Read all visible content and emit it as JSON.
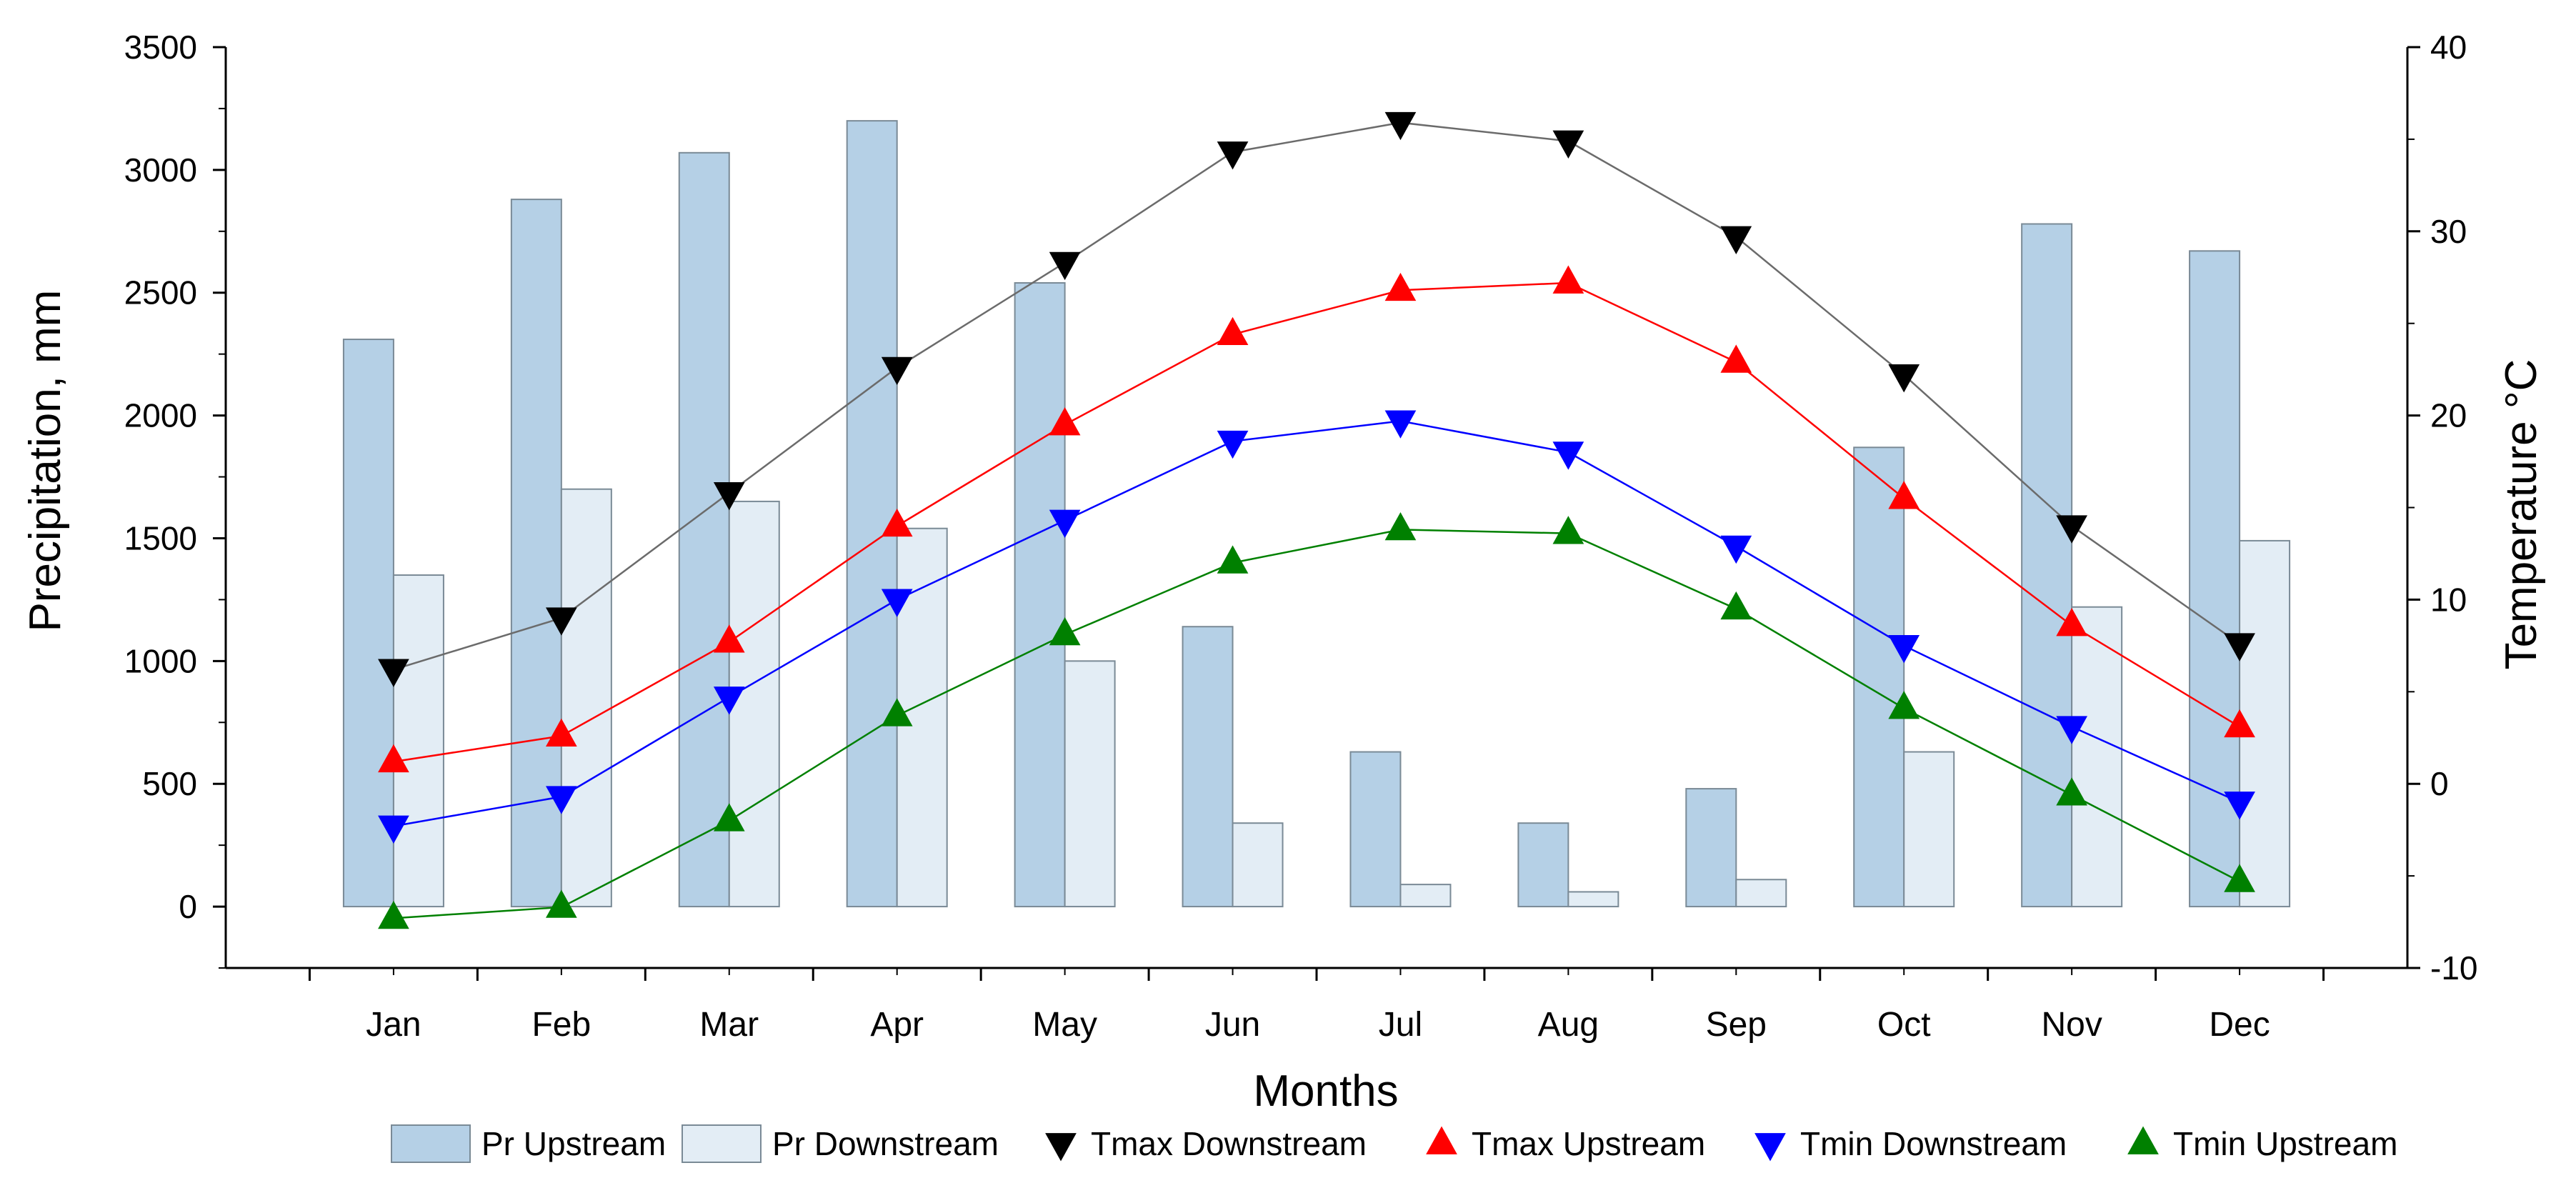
{
  "chart_data": {
    "type": "bar",
    "xlabel": "Months",
    "ylabel_left": "Precipitation, mm",
    "ylabel_right": "Temperature °C",
    "ylim_left": [
      -250,
      3500
    ],
    "ylim_right": [
      -10,
      40
    ],
    "yticks_left": [
      0,
      500,
      1000,
      1500,
      2000,
      2500,
      3000,
      3500
    ],
    "yticks_right": [
      -10,
      0,
      10,
      20,
      30,
      40
    ],
    "categories": [
      "Jan",
      "Feb",
      "Mar",
      "Apr",
      "May",
      "Jun",
      "Jul",
      "Aug",
      "Sep",
      "Oct",
      "Nov",
      "Dec"
    ],
    "bar_series": [
      {
        "name": "Pr Upstream",
        "color": "#b5d0e6",
        "values": [
          2310,
          2880,
          3070,
          3200,
          2540,
          1140,
          630,
          340,
          480,
          1870,
          2780,
          2670
        ]
      },
      {
        "name": "Pr Downstream",
        "color": "#e3edf5",
        "values": [
          1350,
          1700,
          1650,
          1540,
          1000,
          340,
          90,
          60,
          110,
          630,
          1220,
          1490
        ]
      }
    ],
    "line_series": [
      {
        "name": "Tmax Downstream",
        "color": "#000000",
        "line_color": "#6b6b6b",
        "marker": "triangle-down",
        "values": [
          6.2,
          9.0,
          15.8,
          22.6,
          28.3,
          34.3,
          35.9,
          34.9,
          29.7,
          22.2,
          14.0,
          7.6
        ]
      },
      {
        "name": "Tmax Upstream",
        "color": "#ff0000",
        "line_color": "#ff0000",
        "marker": "triangle-up",
        "values": [
          1.2,
          2.6,
          7.7,
          14.0,
          19.5,
          24.4,
          26.8,
          27.2,
          22.9,
          15.5,
          8.6,
          3.1
        ]
      },
      {
        "name": "Tmin Downstream",
        "color": "#0000ff",
        "line_color": "#0000ff",
        "marker": "triangle-down",
        "values": [
          -2.3,
          -0.7,
          4.7,
          10.0,
          14.3,
          18.6,
          19.7,
          18.0,
          12.9,
          7.5,
          3.1,
          -1.0
        ]
      },
      {
        "name": "Tmin Upstream",
        "color": "#008000",
        "line_color": "#008000",
        "marker": "triangle-up",
        "values": [
          -7.3,
          -6.7,
          -2.0,
          3.7,
          8.1,
          12.0,
          13.8,
          13.6,
          9.5,
          4.1,
          -0.6,
          -5.3
        ]
      }
    ]
  }
}
